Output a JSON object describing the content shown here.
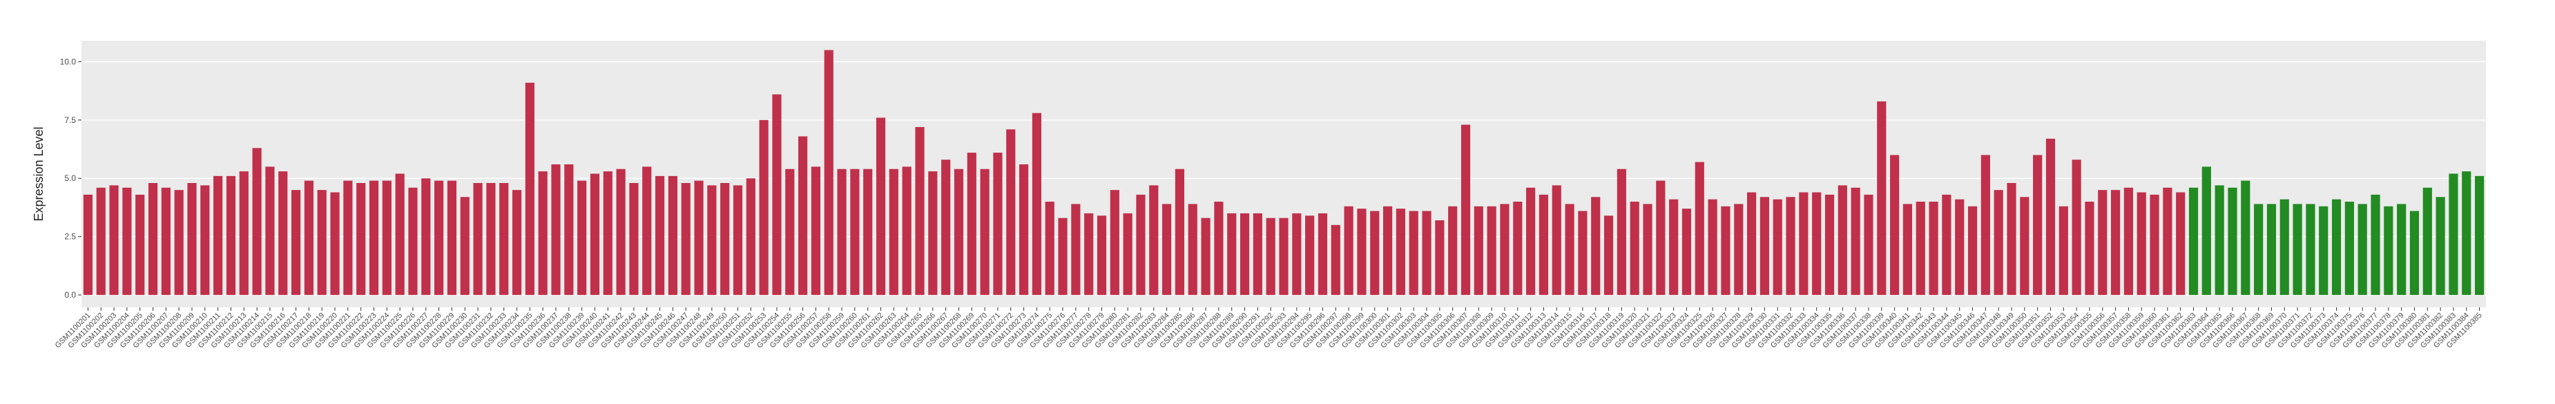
{
  "chart_data": {
    "type": "bar",
    "y_label": "Expression Level",
    "ylim": [
      -0.53,
      10.9
    ],
    "yticks": [
      {
        "value": 0,
        "label": "0.0"
      },
      {
        "value": 2.5,
        "label": "2.5"
      },
      {
        "value": 5,
        "label": "5.0"
      },
      {
        "value": 7.5,
        "label": "7.5"
      },
      {
        "value": 10,
        "label": "10.0"
      }
    ],
    "grid": true,
    "categories": [
      "GSM1100201",
      "GSM1100202",
      "GSM1100203",
      "GSM1100204",
      "GSM1100205",
      "GSM1100206",
      "GSM1100207",
      "GSM1100208",
      "GSM1100209",
      "GSM1100210",
      "GSM1100211",
      "GSM1100212",
      "GSM1100213",
      "GSM1100214",
      "GSM1100215",
      "GSM1100216",
      "GSM1100217",
      "GSM1100218",
      "GSM1100219",
      "GSM1100220",
      "GSM1100221",
      "GSM1100222",
      "GSM1100223",
      "GSM1100224",
      "GSM1100225",
      "GSM1100226",
      "GSM1100227",
      "GSM1100228",
      "GSM1100229",
      "GSM1100230",
      "GSM1100231",
      "GSM1100232",
      "GSM1100233",
      "GSM1100234",
      "GSM1100235",
      "GSM1100236",
      "GSM1100237",
      "GSM1100238",
      "GSM1100239",
      "GSM1100240",
      "GSM1100241",
      "GSM1100242",
      "GSM1100243",
      "GSM1100244",
      "GSM1100245",
      "GSM1100246",
      "GSM1100247",
      "GSM1100248",
      "GSM1100249",
      "GSM1100250",
      "GSM1100251",
      "GSM1100252",
      "GSM1100253",
      "GSM1100254",
      "GSM1100255",
      "GSM1100256",
      "GSM1100257",
      "GSM1100258",
      "GSM1100259",
      "GSM1100260",
      "GSM1100261",
      "GSM1100262",
      "GSM1100263",
      "GSM1100264",
      "GSM1100265",
      "GSM1100266",
      "GSM1100267",
      "GSM1100268",
      "GSM1100269",
      "GSM1100270",
      "GSM1100271",
      "GSM1100272",
      "GSM1100273",
      "GSM1100274",
      "GSM1100275",
      "GSM1100276",
      "GSM1100277",
      "GSM1100278",
      "GSM1100279",
      "GSM1100280",
      "GSM1100281",
      "GSM1100282",
      "GSM1100283",
      "GSM1100284",
      "GSM1100285",
      "GSM1100286",
      "GSM1100287",
      "GSM1100288",
      "GSM1100289",
      "GSM1100290",
      "GSM1100291",
      "GSM1100292",
      "GSM1100293",
      "GSM1100294",
      "GSM1100295",
      "GSM1100296",
      "GSM1100297",
      "GSM1100298",
      "GSM1100299",
      "GSM1100300",
      "GSM1100301",
      "GSM1100302",
      "GSM1100303",
      "GSM1100304",
      "GSM1100305",
      "GSM1100306",
      "GSM1100307",
      "GSM1100308",
      "GSM1100309",
      "GSM1100310",
      "GSM1100311",
      "GSM1100312",
      "GSM1100313",
      "GSM1100314",
      "GSM1100315",
      "GSM1100316",
      "GSM1100317",
      "GSM1100318",
      "GSM1100319",
      "GSM1100320",
      "GSM1100321",
      "GSM1100322",
      "GSM1100323",
      "GSM1100324",
      "GSM1100325",
      "GSM1100326",
      "GSM1100327",
      "GSM1100328",
      "GSM1100329",
      "GSM1100330",
      "GSM1100331",
      "GSM1100332",
      "GSM1100333",
      "GSM1100334",
      "GSM1100335",
      "GSM1100336",
      "GSM1100337",
      "GSM1100338",
      "GSM1100339",
      "GSM1100340",
      "GSM1100341",
      "GSM1100342",
      "GSM1100343",
      "GSM1100344",
      "GSM1100345",
      "GSM1100346",
      "GSM1100347",
      "GSM1100348",
      "GSM1100349",
      "GSM1100350",
      "GSM1100351",
      "GSM1100352",
      "GSM1100353",
      "GSM1100354",
      "GSM1100355",
      "GSM1100356",
      "GSM1100357",
      "GSM1100358",
      "GSM1100359",
      "GSM1100360",
      "GSM1100361",
      "GSM1100362",
      "GSM1100363",
      "GSM1100364",
      "GSM1100365",
      "GSM1100366",
      "GSM1100367",
      "GSM1100368",
      "GSM1100369",
      "GSM1100370",
      "GSM1100371",
      "GSM1100372",
      "GSM1100373",
      "GSM1100374",
      "GSM1100375",
      "GSM1100376",
      "GSM1100377",
      "GSM1100378",
      "GSM1100379",
      "GSM1100380",
      "GSM1100381",
      "GSM1100382",
      "GSM1100383",
      "GSM1100384",
      "GSM1100385"
    ],
    "values": [
      4.3,
      4.6,
      4.7,
      4.6,
      4.3,
      4.8,
      4.6,
      4.5,
      4.8,
      4.7,
      5.1,
      5.1,
      5.3,
      6.3,
      5.5,
      5.3,
      4.5,
      4.9,
      4.5,
      4.4,
      4.9,
      4.8,
      4.9,
      4.9,
      5.2,
      4.6,
      5.0,
      4.9,
      4.9,
      4.2,
      4.8,
      4.8,
      4.8,
      4.5,
      9.1,
      5.3,
      5.6,
      5.6,
      4.9,
      5.2,
      5.3,
      5.4,
      4.8,
      5.5,
      5.1,
      5.1,
      4.8,
      4.9,
      4.7,
      4.8,
      4.7,
      5.0,
      7.5,
      8.6,
      5.4,
      6.8,
      5.5,
      10.5,
      5.4,
      5.4,
      5.4,
      7.6,
      5.4,
      5.5,
      7.2,
      5.3,
      5.8,
      5.4,
      6.1,
      5.4,
      6.1,
      7.1,
      5.6,
      7.8,
      4.0,
      3.3,
      3.9,
      3.5,
      3.4,
      4.5,
      3.5,
      4.3,
      4.7,
      3.9,
      5.4,
      3.9,
      3.3,
      4.0,
      3.5,
      3.5,
      3.5,
      3.3,
      3.3,
      3.5,
      3.4,
      3.5,
      3.0,
      3.8,
      3.7,
      3.6,
      3.8,
      3.7,
      3.6,
      3.6,
      3.2,
      3.8,
      7.3,
      3.8,
      3.8,
      3.9,
      4.0,
      4.6,
      4.3,
      4.7,
      3.9,
      3.6,
      4.2,
      3.4,
      5.4,
      4.0,
      3.9,
      4.9,
      4.1,
      3.7,
      5.7,
      4.1,
      3.8,
      3.9,
      4.4,
      4.2,
      4.1,
      4.2,
      4.4,
      4.4,
      4.3,
      4.7,
      4.6,
      4.3,
      8.3,
      6.0,
      3.9,
      4.0,
      4.0,
      4.3,
      4.1,
      3.8,
      6.0,
      4.5,
      4.8,
      4.2,
      6.0,
      6.7,
      3.8,
      5.8,
      4.0,
      4.5,
      4.5,
      4.6,
      4.4,
      4.3,
      4.6,
      4.4,
      4.6,
      5.5,
      4.7,
      4.6,
      4.9,
      3.9,
      3.9,
      4.1,
      3.9,
      3.9,
      3.8,
      4.1,
      4.0,
      3.9,
      4.3,
      3.8,
      3.9,
      3.6,
      4.6,
      4.2,
      5.2,
      5.3,
      5.1
    ],
    "colors": [
      "#c0304a",
      "#c0304a",
      "#c0304a",
      "#c0304a",
      "#c0304a",
      "#c0304a",
      "#c0304a",
      "#c0304a",
      "#c0304a",
      "#c0304a",
      "#c0304a",
      "#c0304a",
      "#c0304a",
      "#c0304a",
      "#c0304a",
      "#c0304a",
      "#c0304a",
      "#c0304a",
      "#c0304a",
      "#c0304a",
      "#c0304a",
      "#c0304a",
      "#c0304a",
      "#c0304a",
      "#c0304a",
      "#c0304a",
      "#c0304a",
      "#c0304a",
      "#c0304a",
      "#c0304a",
      "#c0304a",
      "#c0304a",
      "#c0304a",
      "#c0304a",
      "#c0304a",
      "#c0304a",
      "#c0304a",
      "#c0304a",
      "#c0304a",
      "#c0304a",
      "#c0304a",
      "#c0304a",
      "#c0304a",
      "#c0304a",
      "#c0304a",
      "#c0304a",
      "#c0304a",
      "#c0304a",
      "#c0304a",
      "#c0304a",
      "#c0304a",
      "#c0304a",
      "#c0304a",
      "#c0304a",
      "#c0304a",
      "#c0304a",
      "#c0304a",
      "#c0304a",
      "#c0304a",
      "#c0304a",
      "#c0304a",
      "#c0304a",
      "#c0304a",
      "#c0304a",
      "#c0304a",
      "#c0304a",
      "#c0304a",
      "#c0304a",
      "#c0304a",
      "#c0304a",
      "#c0304a",
      "#c0304a",
      "#c0304a",
      "#c0304a",
      "#c0304a",
      "#c0304a",
      "#c0304a",
      "#c0304a",
      "#c0304a",
      "#c0304a",
      "#c0304a",
      "#c0304a",
      "#c0304a",
      "#c0304a",
      "#c0304a",
      "#c0304a",
      "#c0304a",
      "#c0304a",
      "#c0304a",
      "#c0304a",
      "#c0304a",
      "#c0304a",
      "#c0304a",
      "#c0304a",
      "#c0304a",
      "#c0304a",
      "#c0304a",
      "#c0304a",
      "#c0304a",
      "#c0304a",
      "#c0304a",
      "#c0304a",
      "#c0304a",
      "#c0304a",
      "#c0304a",
      "#c0304a",
      "#c0304a",
      "#c0304a",
      "#c0304a",
      "#c0304a",
      "#c0304a",
      "#c0304a",
      "#c0304a",
      "#c0304a",
      "#c0304a",
      "#c0304a",
      "#c0304a",
      "#c0304a",
      "#c0304a",
      "#c0304a",
      "#c0304a",
      "#c0304a",
      "#c0304a",
      "#c0304a",
      "#c0304a",
      "#c0304a",
      "#c0304a",
      "#c0304a",
      "#c0304a",
      "#c0304a",
      "#c0304a",
      "#c0304a",
      "#c0304a",
      "#c0304a",
      "#c0304a",
      "#c0304a",
      "#c0304a",
      "#c0304a",
      "#c0304a",
      "#c0304a",
      "#c0304a",
      "#c0304a",
      "#c0304a",
      "#c0304a",
      "#c0304a",
      "#c0304a",
      "#c0304a",
      "#c0304a",
      "#c0304a",
      "#c0304a",
      "#c0304a",
      "#c0304a",
      "#c0304a",
      "#c0304a",
      "#c0304a",
      "#c0304a",
      "#c0304a",
      "#c0304a",
      "#c0304a",
      "#c0304a",
      "#c0304a",
      "#c0304a",
      "#228b22",
      "#228b22",
      "#228b22",
      "#228b22",
      "#228b22",
      "#228b22",
      "#228b22",
      "#228b22",
      "#228b22",
      "#228b22",
      "#228b22",
      "#228b22",
      "#228b22",
      "#228b22",
      "#228b22",
      "#228b22",
      "#228b22",
      "#228b22",
      "#228b22",
      "#228b22",
      "#228b22",
      "#228b22",
      "#228b22"
    ]
  }
}
